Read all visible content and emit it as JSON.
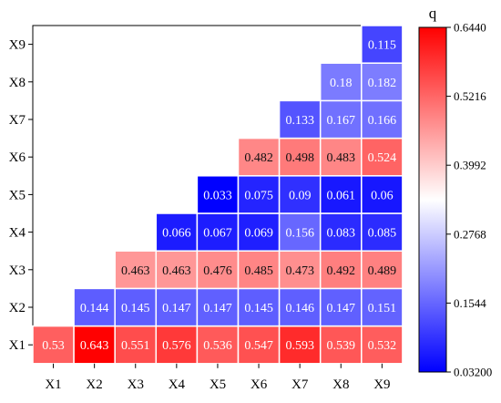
{
  "chart_data": {
    "type": "heatmap",
    "title": "",
    "xlabel": "",
    "ylabel": "",
    "x_categories": [
      "X1",
      "X2",
      "X3",
      "X4",
      "X5",
      "X6",
      "X7",
      "X8",
      "X9"
    ],
    "y_categories": [
      "X1",
      "X2",
      "X3",
      "X4",
      "X5",
      "X6",
      "X7",
      "X8",
      "X9"
    ],
    "layout": "lower-triangular (cell shown when column >= row)",
    "cells": [
      {
        "x": "X1",
        "y": "X1",
        "value": 0.53,
        "label": "0.53"
      },
      {
        "x": "X2",
        "y": "X1",
        "value": 0.643,
        "label": "0.643"
      },
      {
        "x": "X3",
        "y": "X1",
        "value": 0.551,
        "label": "0.551"
      },
      {
        "x": "X4",
        "y": "X1",
        "value": 0.576,
        "label": "0.576"
      },
      {
        "x": "X5",
        "y": "X1",
        "value": 0.536,
        "label": "0.536"
      },
      {
        "x": "X6",
        "y": "X1",
        "value": 0.547,
        "label": "0.547"
      },
      {
        "x": "X7",
        "y": "X1",
        "value": 0.593,
        "label": "0.593"
      },
      {
        "x": "X8",
        "y": "X1",
        "value": 0.539,
        "label": "0.539"
      },
      {
        "x": "X9",
        "y": "X1",
        "value": 0.532,
        "label": "0.532"
      },
      {
        "x": "X2",
        "y": "X2",
        "value": 0.144,
        "label": "0.144"
      },
      {
        "x": "X3",
        "y": "X2",
        "value": 0.145,
        "label": "0.145"
      },
      {
        "x": "X4",
        "y": "X2",
        "value": 0.147,
        "label": "0.147"
      },
      {
        "x": "X5",
        "y": "X2",
        "value": 0.147,
        "label": "0.147"
      },
      {
        "x": "X6",
        "y": "X2",
        "value": 0.145,
        "label": "0.145"
      },
      {
        "x": "X7",
        "y": "X2",
        "value": 0.146,
        "label": "0.146"
      },
      {
        "x": "X8",
        "y": "X2",
        "value": 0.147,
        "label": "0.147"
      },
      {
        "x": "X9",
        "y": "X2",
        "value": 0.151,
        "label": "0.151"
      },
      {
        "x": "X3",
        "y": "X3",
        "value": 0.463,
        "label": "0.463"
      },
      {
        "x": "X4",
        "y": "X3",
        "value": 0.463,
        "label": "0.463"
      },
      {
        "x": "X5",
        "y": "X3",
        "value": 0.476,
        "label": "0.476"
      },
      {
        "x": "X6",
        "y": "X3",
        "value": 0.485,
        "label": "0.485"
      },
      {
        "x": "X7",
        "y": "X3",
        "value": 0.473,
        "label": "0.473"
      },
      {
        "x": "X8",
        "y": "X3",
        "value": 0.492,
        "label": "0.492"
      },
      {
        "x": "X9",
        "y": "X3",
        "value": 0.489,
        "label": "0.489"
      },
      {
        "x": "X4",
        "y": "X4",
        "value": 0.066,
        "label": "0.066"
      },
      {
        "x": "X5",
        "y": "X4",
        "value": 0.067,
        "label": "0.067"
      },
      {
        "x": "X6",
        "y": "X4",
        "value": 0.069,
        "label": "0.069"
      },
      {
        "x": "X7",
        "y": "X4",
        "value": 0.156,
        "label": "0.156"
      },
      {
        "x": "X8",
        "y": "X4",
        "value": 0.083,
        "label": "0.083"
      },
      {
        "x": "X9",
        "y": "X4",
        "value": 0.085,
        "label": "0.085"
      },
      {
        "x": "X5",
        "y": "X5",
        "value": 0.033,
        "label": "0.033"
      },
      {
        "x": "X6",
        "y": "X5",
        "value": 0.075,
        "label": "0.075"
      },
      {
        "x": "X7",
        "y": "X5",
        "value": 0.09,
        "label": "0.09"
      },
      {
        "x": "X8",
        "y": "X5",
        "value": 0.061,
        "label": "0.061"
      },
      {
        "x": "X9",
        "y": "X5",
        "value": 0.06,
        "label": "0.06"
      },
      {
        "x": "X6",
        "y": "X6",
        "value": 0.482,
        "label": "0.482"
      },
      {
        "x": "X7",
        "y": "X6",
        "value": 0.498,
        "label": "0.498"
      },
      {
        "x": "X8",
        "y": "X6",
        "value": 0.483,
        "label": "0.483"
      },
      {
        "x": "X9",
        "y": "X6",
        "value": 0.524,
        "label": "0.524"
      },
      {
        "x": "X7",
        "y": "X7",
        "value": 0.133,
        "label": "0.133"
      },
      {
        "x": "X8",
        "y": "X7",
        "value": 0.167,
        "label": "0.167"
      },
      {
        "x": "X9",
        "y": "X7",
        "value": 0.166,
        "label": "0.166"
      },
      {
        "x": "X8",
        "y": "X8",
        "value": 0.18,
        "label": "0.18"
      },
      {
        "x": "X9",
        "y": "X8",
        "value": 0.182,
        "label": "0.182"
      },
      {
        "x": "X9",
        "y": "X9",
        "value": 0.115,
        "label": "0.115"
      }
    ],
    "colorbar": {
      "title": "q",
      "min": 0.032,
      "max": 0.644,
      "ticks": [
        {
          "value": 0.644,
          "label": "0.6440"
        },
        {
          "value": 0.5216,
          "label": "0.5216"
        },
        {
          "value": 0.3992,
          "label": "0.3992"
        },
        {
          "value": 0.2768,
          "label": "0.2768"
        },
        {
          "value": 0.1544,
          "label": "0.1544"
        },
        {
          "value": 0.032,
          "label": "0.03200"
        }
      ],
      "colors": {
        "low": "#0000ff",
        "mid": "#ffffff",
        "high": "#ff0000"
      }
    },
    "grid": false,
    "legend": "colorbar-right"
  }
}
